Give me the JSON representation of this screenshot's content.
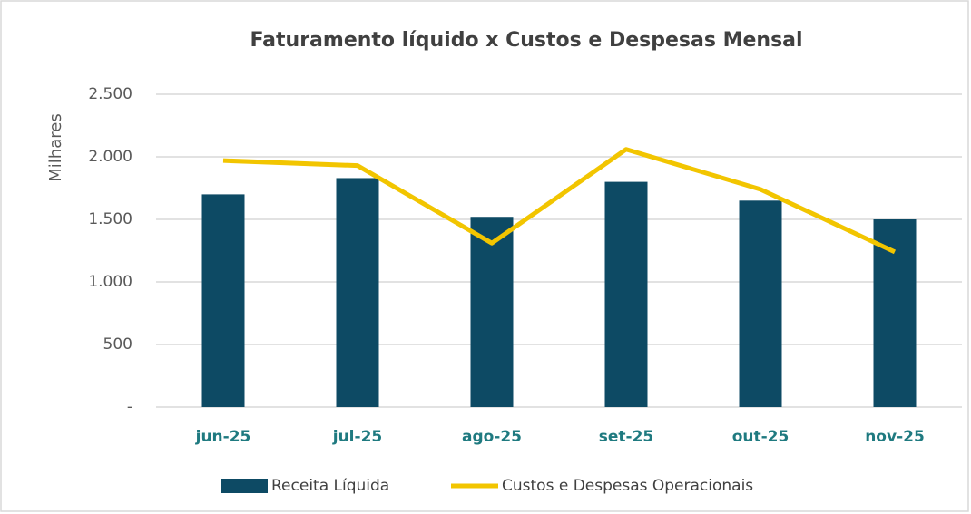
{
  "chart_data": {
    "type": "bar",
    "title": "Faturamento líquido x Custos e Despesas Mensal",
    "y_label": "Milhares",
    "categories": [
      "jun-25",
      "jul-25",
      "ago-25",
      "set-25",
      "out-25",
      "nov-25"
    ],
    "series": [
      {
        "name": "Receita Líquida",
        "type": "bar",
        "color": "#0d4a64",
        "values": [
          1700,
          1830,
          1520,
          1800,
          1650,
          1500
        ]
      },
      {
        "name": "Custos e Despesas Operacionais",
        "type": "line",
        "color": "#f2c500",
        "values": [
          1970,
          1930,
          1310,
          2060,
          1740,
          1240
        ]
      }
    ],
    "ylim": [
      0,
      2500
    ],
    "yticks": [
      {
        "value": 0,
        "label": "-"
      },
      500,
      {
        "value": 1000,
        "label": "1.000"
      },
      {
        "value": 1500,
        "label": "1.500"
      },
      {
        "value": 2000,
        "label": "2.000"
      },
      {
        "value": 2500,
        "label": "2.500"
      }
    ],
    "grid": true,
    "legend": "bottom"
  }
}
